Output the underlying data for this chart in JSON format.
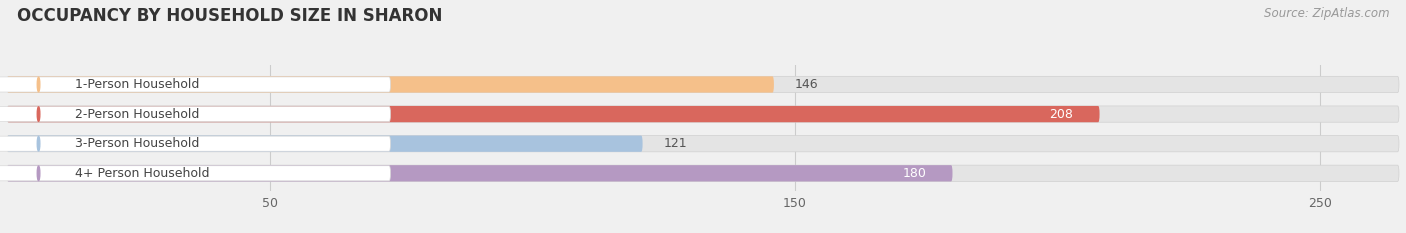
{
  "title": "OCCUPANCY BY HOUSEHOLD SIZE IN SHARON",
  "source": "Source: ZipAtlas.com",
  "categories": [
    "1-Person Household",
    "2-Person Household",
    "3-Person Household",
    "4+ Person Household"
  ],
  "values": [
    146,
    208,
    121,
    180
  ],
  "bar_colors": [
    "#f5c08a",
    "#d9675d",
    "#a8c3de",
    "#b599c2"
  ],
  "label_colors": [
    "#555555",
    "#ffffff",
    "#555555",
    "#ffffff"
  ],
  "xlim_max": 265,
  "xticks": [
    50,
    150,
    250
  ],
  "bar_height": 0.55,
  "background_color": "#f0f0f0",
  "track_color": "#e4e4e4",
  "title_fontsize": 12,
  "source_fontsize": 8.5,
  "value_fontsize": 9,
  "cat_fontsize": 9
}
